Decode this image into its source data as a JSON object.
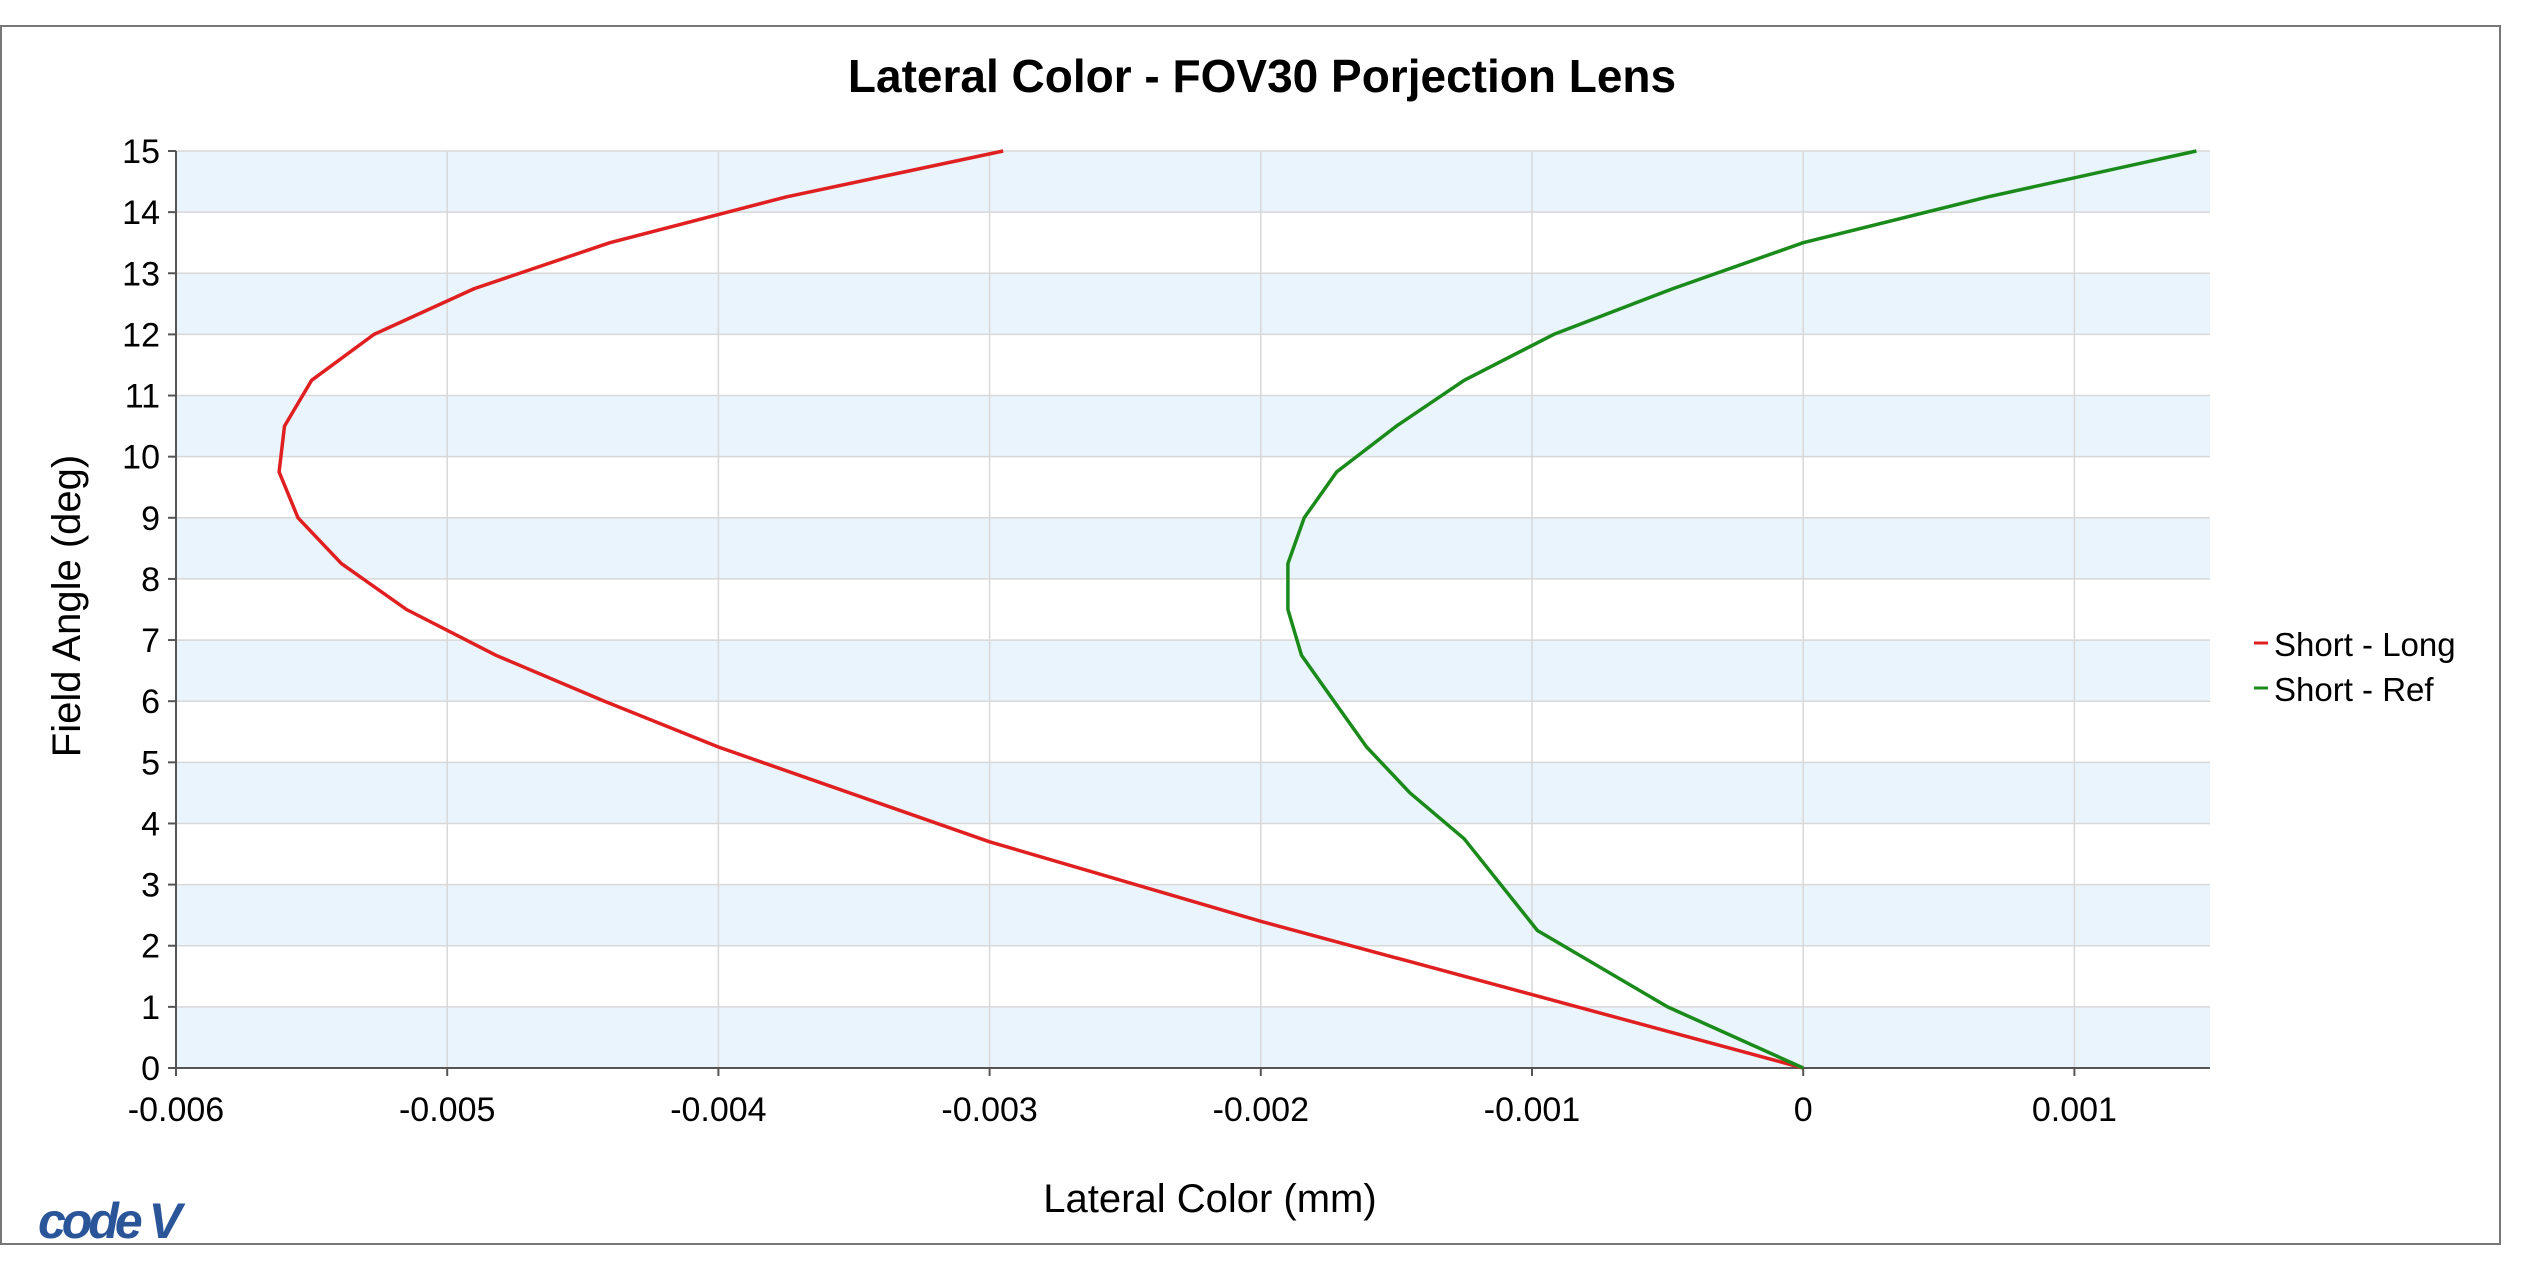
{
  "chart_data": {
    "type": "line",
    "title": "Lateral Color - FOV30 Porjection Lens",
    "xlabel": "Lateral Color (mm)",
    "ylabel": "Field Angle (deg)",
    "xlim": [
      -0.006,
      0.0015
    ],
    "ylim": [
      0,
      15
    ],
    "x_ticks": [
      -0.006,
      -0.005,
      -0.004,
      -0.003,
      -0.002,
      -0.001,
      0,
      0.001
    ],
    "x_tick_labels": [
      "-0.006",
      "-0.005",
      "-0.004",
      "-0.003",
      "-0.002",
      "-0.001",
      "0",
      "0.001"
    ],
    "y_ticks": [
      0,
      1,
      2,
      3,
      4,
      5,
      6,
      7,
      8,
      9,
      10,
      11,
      12,
      13,
      14,
      15
    ],
    "y_tick_labels": [
      "0",
      "1",
      "2",
      "3",
      "4",
      "5",
      "6",
      "7",
      "8",
      "9",
      "10",
      "11",
      "12",
      "13",
      "14",
      "15"
    ],
    "grid": true,
    "legend_position": "right",
    "series": [
      {
        "name": "Short - Long",
        "color": "#e02020",
        "x": [
          0,
          -0.001,
          -0.002,
          -0.003,
          -0.004,
          -0.00442,
          -0.00482,
          -0.00515,
          -0.00539,
          -0.00555,
          -0.00562,
          -0.0056,
          -0.0055,
          -0.00527,
          -0.0049,
          -0.0044,
          -0.00375,
          -0.00295
        ],
        "y": [
          0,
          1.2,
          2.4,
          3.7,
          5.25,
          6.0,
          6.75,
          7.5,
          8.25,
          9.0,
          9.75,
          10.5,
          11.25,
          12.0,
          12.75,
          13.5,
          14.25,
          15.0
        ]
      },
      {
        "name": "Short - Ref",
        "color": "#1a8a1a",
        "x": [
          0,
          -0.0005,
          -0.00098,
          -0.00125,
          -0.00145,
          -0.00161,
          -0.00173,
          -0.00185,
          -0.0019,
          -0.0019,
          -0.00184,
          -0.00172,
          -0.0015,
          -0.00125,
          -0.00092,
          -0.00048,
          0.0,
          0.00068,
          0.00145
        ],
        "y": [
          0,
          1.0,
          2.25,
          3.75,
          4.5,
          5.25,
          6.0,
          6.75,
          7.5,
          8.25,
          9.0,
          9.75,
          10.5,
          11.25,
          12.0,
          12.75,
          13.5,
          14.25,
          15.0
        ]
      }
    ]
  },
  "logo": {
    "text": "code V",
    "color": "#2a5599"
  }
}
